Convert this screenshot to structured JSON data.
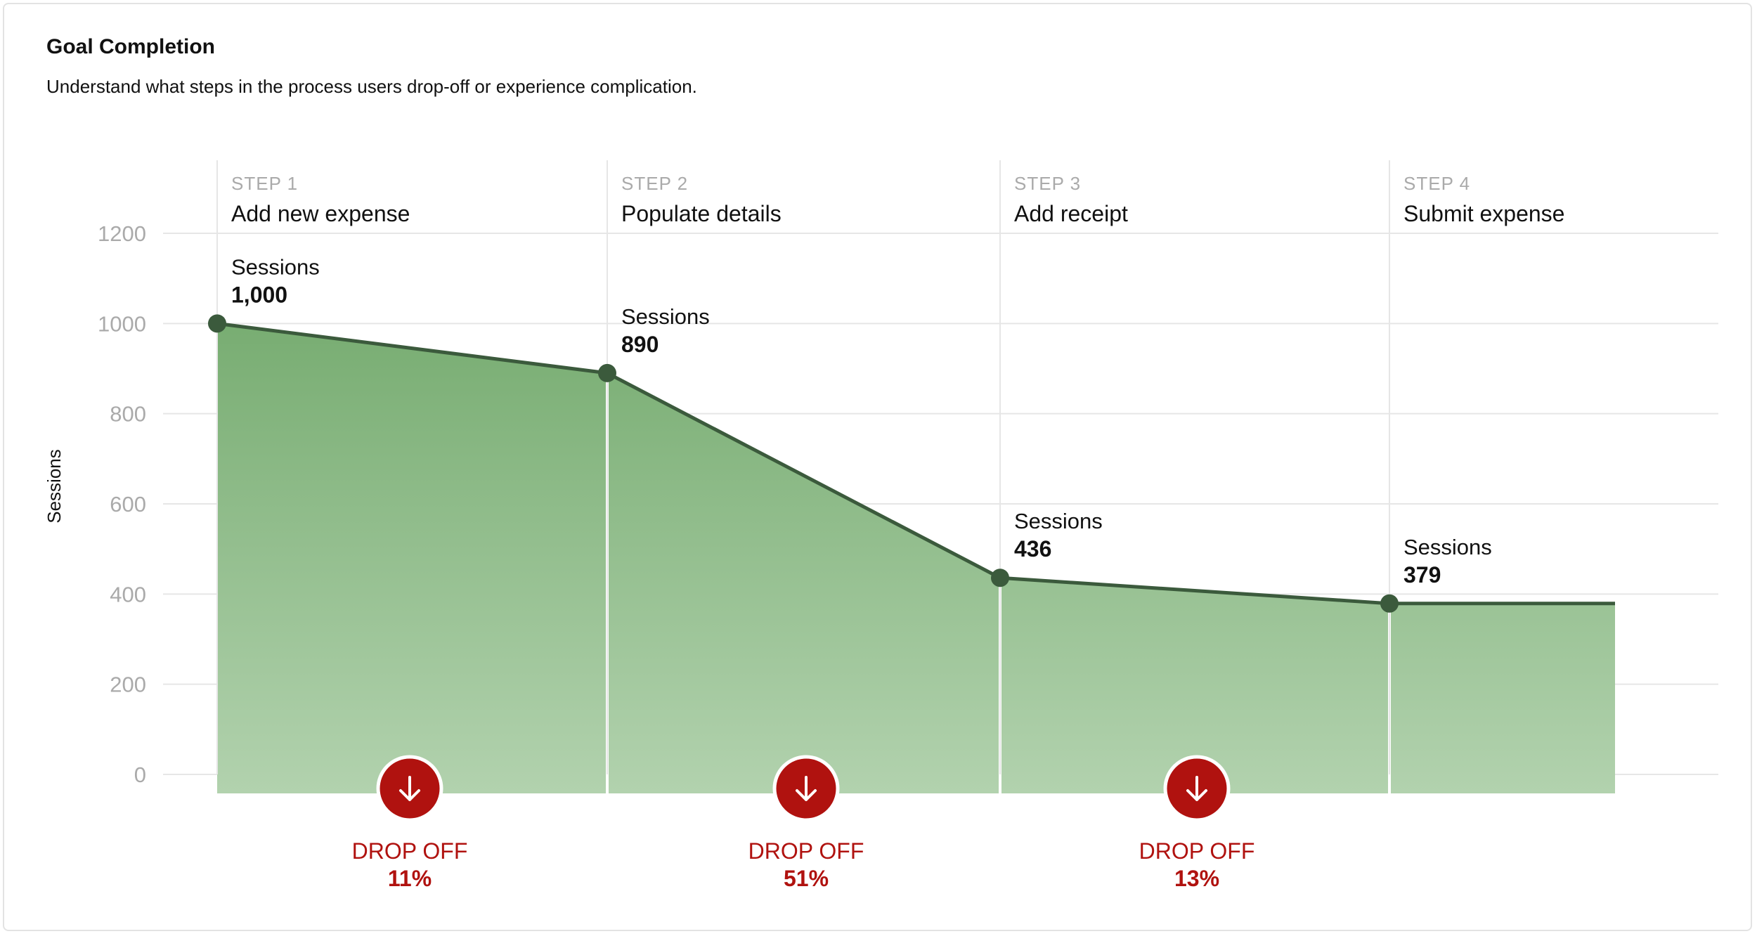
{
  "header": {
    "title": "Goal Completion",
    "subtitle": "Understand what steps in the process users drop-off or experience complication."
  },
  "colors": {
    "line": "#3b5a3c",
    "fill_top": "#78ad72",
    "fill_bottom": "#b2d2ae",
    "drop_red": "#b0120f",
    "grid": "#e6e6e6",
    "tick": "#aaaaaa"
  },
  "chart_data": {
    "type": "area",
    "title": "Goal Completion",
    "ylabel": "Sessions",
    "ylim": [
      0,
      1200
    ],
    "yticks": [
      0,
      200,
      400,
      600,
      800,
      1000,
      1200
    ],
    "grid": true,
    "steps": [
      {
        "step": "STEP 1",
        "name": "Add new expense",
        "value": 1000,
        "value_label": "1,000",
        "value_caption": "Sessions"
      },
      {
        "step": "STEP 2",
        "name": "Populate details",
        "value": 890,
        "value_label": "890",
        "value_caption": "Sessions"
      },
      {
        "step": "STEP 3",
        "name": "Add receipt",
        "value": 436,
        "value_label": "436",
        "value_caption": "Sessions"
      },
      {
        "step": "STEP 4",
        "name": "Submit expense",
        "value": 379,
        "value_label": "379",
        "value_caption": "Sessions"
      }
    ],
    "dropoffs": [
      {
        "label": "DROP OFF",
        "value": "11%"
      },
      {
        "label": "DROP OFF",
        "value": "51%"
      },
      {
        "label": "DROP OFF",
        "value": "13%"
      }
    ]
  }
}
